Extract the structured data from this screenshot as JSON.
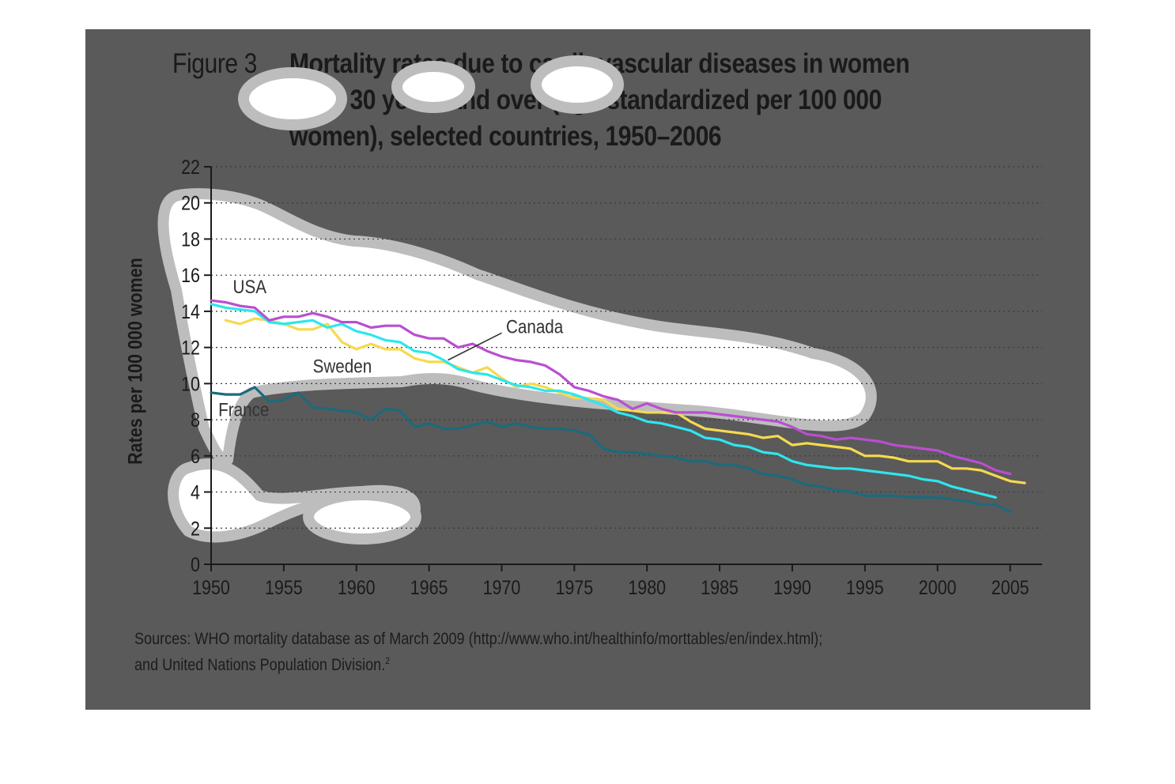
{
  "figure": {
    "label": "Figure 3",
    "title_lines": [
      "Mortality rates due to cardiovascular diseases in women",
      "aged 30 years and over (age-standardized per 100 000",
      "women), selected countries, 1950–2006"
    ],
    "source_lines": [
      "Sources: WHO mortality database as of March 2009 (http://www.who.int/healthinfo/morttables/en/index.html);",
      "and United Nations Population Division."
    ],
    "source_footnote": "2"
  },
  "colors": {
    "figure_background": "#5a5a5a",
    "highlight_fill": "#ffffff",
    "highlight_ring": "#bdbdbd",
    "usa": "#b94fd0",
    "canada": "#2ee6ee",
    "sweden": "#f6d94e",
    "france": "#1c6a7c",
    "axis": "#1a1a1a",
    "grid": "#3a3a3a"
  },
  "chart_data": {
    "type": "line",
    "title": "Mortality rates due to cardiovascular diseases in women aged 30 years and over (age-standardized per 100 000 women), selected countries, 1950–2006",
    "xlabel": "",
    "ylabel": "Rates per 100 000 women",
    "xlim": [
      1950,
      2007
    ],
    "ylim": [
      0,
      22
    ],
    "x_ticks": [
      1950,
      1955,
      1960,
      1965,
      1970,
      1975,
      1980,
      1985,
      1990,
      1995,
      2000,
      2005
    ],
    "y_ticks": [
      0,
      2,
      4,
      6,
      8,
      10,
      12,
      14,
      16,
      18,
      20,
      22
    ],
    "grid": "horizontal dotted",
    "series": [
      {
        "name": "USA",
        "color_key": "usa",
        "x": [
          1950,
          1951,
          1952,
          1953,
          1954,
          1955,
          1956,
          1957,
          1958,
          1959,
          1960,
          1961,
          1962,
          1963,
          1964,
          1965,
          1966,
          1967,
          1968,
          1969,
          1970,
          1971,
          1972,
          1973,
          1974,
          1975,
          1976,
          1977,
          1978,
          1979,
          1980,
          1981,
          1982,
          1983,
          1984,
          1985,
          1986,
          1987,
          1988,
          1989,
          1990,
          1991,
          1992,
          1993,
          1994,
          1995,
          1996,
          1997,
          1998,
          1999,
          2000,
          2001,
          2002,
          2003,
          2004,
          2005
        ],
        "values": [
          14.6,
          14.5,
          14.3,
          14.2,
          13.5,
          13.7,
          13.7,
          13.9,
          13.7,
          13.4,
          13.4,
          13.1,
          13.2,
          13.2,
          12.7,
          12.5,
          12.5,
          12.0,
          12.2,
          11.8,
          11.5,
          11.3,
          11.2,
          11.0,
          10.5,
          9.8,
          9.6,
          9.3,
          9.1,
          8.6,
          8.9,
          8.6,
          8.4,
          8.4,
          8.4,
          8.3,
          8.2,
          8.1,
          8.0,
          7.9,
          7.6,
          7.2,
          7.1,
          6.9,
          7.0,
          6.9,
          6.8,
          6.6,
          6.5,
          6.4,
          6.3,
          6.0,
          5.8,
          5.6,
          5.2,
          5.0
        ]
      },
      {
        "name": "Canada",
        "color_key": "canada",
        "x": [
          1950,
          1951,
          1952,
          1953,
          1954,
          1955,
          1956,
          1957,
          1958,
          1959,
          1960,
          1961,
          1962,
          1963,
          1964,
          1965,
          1966,
          1967,
          1968,
          1969,
          1970,
          1971,
          1972,
          1973,
          1974,
          1975,
          1976,
          1977,
          1978,
          1979,
          1980,
          1981,
          1982,
          1983,
          1984,
          1985,
          1986,
          1987,
          1988,
          1989,
          1990,
          1991,
          1992,
          1993,
          1994,
          1995,
          1996,
          1997,
          1998,
          1999,
          2000,
          2001,
          2002,
          2003,
          2004
        ],
        "values": [
          14.4,
          14.2,
          14.1,
          14.0,
          13.4,
          13.3,
          13.4,
          13.5,
          13.1,
          13.3,
          12.9,
          12.7,
          12.4,
          12.3,
          11.8,
          11.7,
          11.3,
          10.8,
          10.6,
          10.5,
          10.2,
          9.9,
          9.8,
          9.6,
          9.6,
          9.4,
          9.1,
          8.8,
          8.4,
          8.2,
          7.9,
          7.8,
          7.6,
          7.4,
          7.0,
          6.9,
          6.6,
          6.5,
          6.2,
          6.1,
          5.7,
          5.5,
          5.4,
          5.3,
          5.3,
          5.2,
          5.1,
          5.0,
          4.9,
          4.7,
          4.6,
          4.3,
          4.1,
          3.9,
          3.7
        ]
      },
      {
        "name": "Sweden",
        "color_key": "sweden",
        "x": [
          1951,
          1952,
          1953,
          1954,
          1955,
          1956,
          1957,
          1958,
          1959,
          1960,
          1961,
          1962,
          1963,
          1964,
          1965,
          1966,
          1967,
          1968,
          1969,
          1970,
          1971,
          1972,
          1973,
          1974,
          1975,
          1976,
          1977,
          1978,
          1979,
          1980,
          1981,
          1982,
          1983,
          1984,
          1985,
          1986,
          1987,
          1988,
          1989,
          1990,
          1991,
          1992,
          1993,
          1994,
          1995,
          1996,
          1997,
          1998,
          1999,
          2000,
          2001,
          2002,
          2003,
          2004,
          2005,
          2006
        ],
        "values": [
          13.5,
          13.3,
          13.6,
          13.5,
          13.3,
          13.0,
          13.0,
          13.3,
          12.3,
          11.9,
          12.2,
          11.9,
          11.9,
          11.4,
          11.2,
          11.2,
          10.9,
          10.6,
          10.9,
          10.3,
          9.8,
          10.0,
          9.8,
          9.5,
          9.2,
          9.2,
          9.1,
          8.6,
          8.5,
          8.4,
          8.4,
          8.4,
          7.9,
          7.5,
          7.4,
          7.3,
          7.2,
          7.0,
          7.1,
          6.6,
          6.7,
          6.6,
          6.5,
          6.4,
          6.0,
          6.0,
          5.9,
          5.7,
          5.7,
          5.7,
          5.3,
          5.3,
          5.2,
          4.9,
          4.6,
          4.5
        ]
      },
      {
        "name": "France",
        "color_key": "france",
        "x": [
          1950,
          1951,
          1952,
          1953,
          1954,
          1955,
          1956,
          1957,
          1958,
          1959,
          1960,
          1961,
          1962,
          1963,
          1964,
          1965,
          1966,
          1967,
          1968,
          1969,
          1970,
          1971,
          1972,
          1973,
          1974,
          1975,
          1976,
          1977,
          1978,
          1979,
          1980,
          1981,
          1982,
          1983,
          1984,
          1985,
          1986,
          1987,
          1988,
          1989,
          1990,
          1991,
          1992,
          1993,
          1994,
          1995,
          1996,
          1997,
          1998,
          1999,
          2000,
          2001,
          2002,
          2003,
          2004,
          2005
        ],
        "values": [
          9.5,
          9.4,
          9.4,
          9.8,
          9.0,
          9.1,
          9.5,
          8.7,
          8.6,
          8.5,
          8.4,
          8.0,
          8.6,
          8.5,
          7.6,
          7.8,
          7.5,
          7.5,
          7.7,
          7.9,
          7.6,
          7.8,
          7.6,
          7.5,
          7.5,
          7.4,
          7.2,
          6.4,
          6.2,
          6.2,
          6.1,
          6.0,
          5.9,
          5.7,
          5.7,
          5.5,
          5.5,
          5.3,
          5.0,
          4.9,
          4.7,
          4.4,
          4.3,
          4.1,
          4.0,
          3.8,
          3.8,
          3.8,
          3.7,
          3.7,
          3.7,
          3.6,
          3.5,
          3.3,
          3.3,
          2.9
        ]
      }
    ],
    "annotations": [
      {
        "text": "USA",
        "series": "USA"
      },
      {
        "text": "Canada",
        "series": "Canada"
      },
      {
        "text": "Sweden",
        "series": "Sweden"
      },
      {
        "text": "France",
        "series": "France"
      }
    ]
  }
}
